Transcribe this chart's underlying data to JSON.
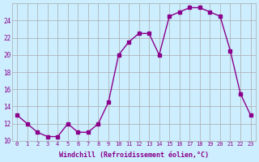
{
  "x": [
    0,
    1,
    2,
    3,
    4,
    5,
    6,
    7,
    8,
    9,
    10,
    11,
    12,
    13,
    14,
    15,
    16,
    17,
    18,
    19,
    20,
    21,
    22,
    23
  ],
  "y": [
    13,
    12,
    11,
    10.5,
    10.5,
    12,
    11,
    11,
    12,
    14.5,
    20,
    21.5,
    22.5,
    22.5,
    20,
    24.5,
    25,
    25.5,
    25.5,
    25,
    24.5,
    20.5,
    15.5,
    13
  ],
  "line_color": "#8B008B",
  "marker_color": "#8B008B",
  "bg_color": "#cceeff",
  "grid_color": "#aaaaaa",
  "xlabel": "Windchill (Refroidissement éolien,°C)",
  "xlabel_color": "#8B008B",
  "ylim": [
    10,
    26
  ],
  "xlim": [
    -0.5,
    23.5
  ],
  "yticks": [
    10,
    12,
    14,
    16,
    18,
    20,
    22,
    24
  ],
  "xticks": [
    0,
    1,
    2,
    3,
    4,
    5,
    6,
    7,
    8,
    9,
    10,
    11,
    12,
    13,
    14,
    15,
    16,
    17,
    18,
    19,
    20,
    21,
    22,
    23
  ]
}
